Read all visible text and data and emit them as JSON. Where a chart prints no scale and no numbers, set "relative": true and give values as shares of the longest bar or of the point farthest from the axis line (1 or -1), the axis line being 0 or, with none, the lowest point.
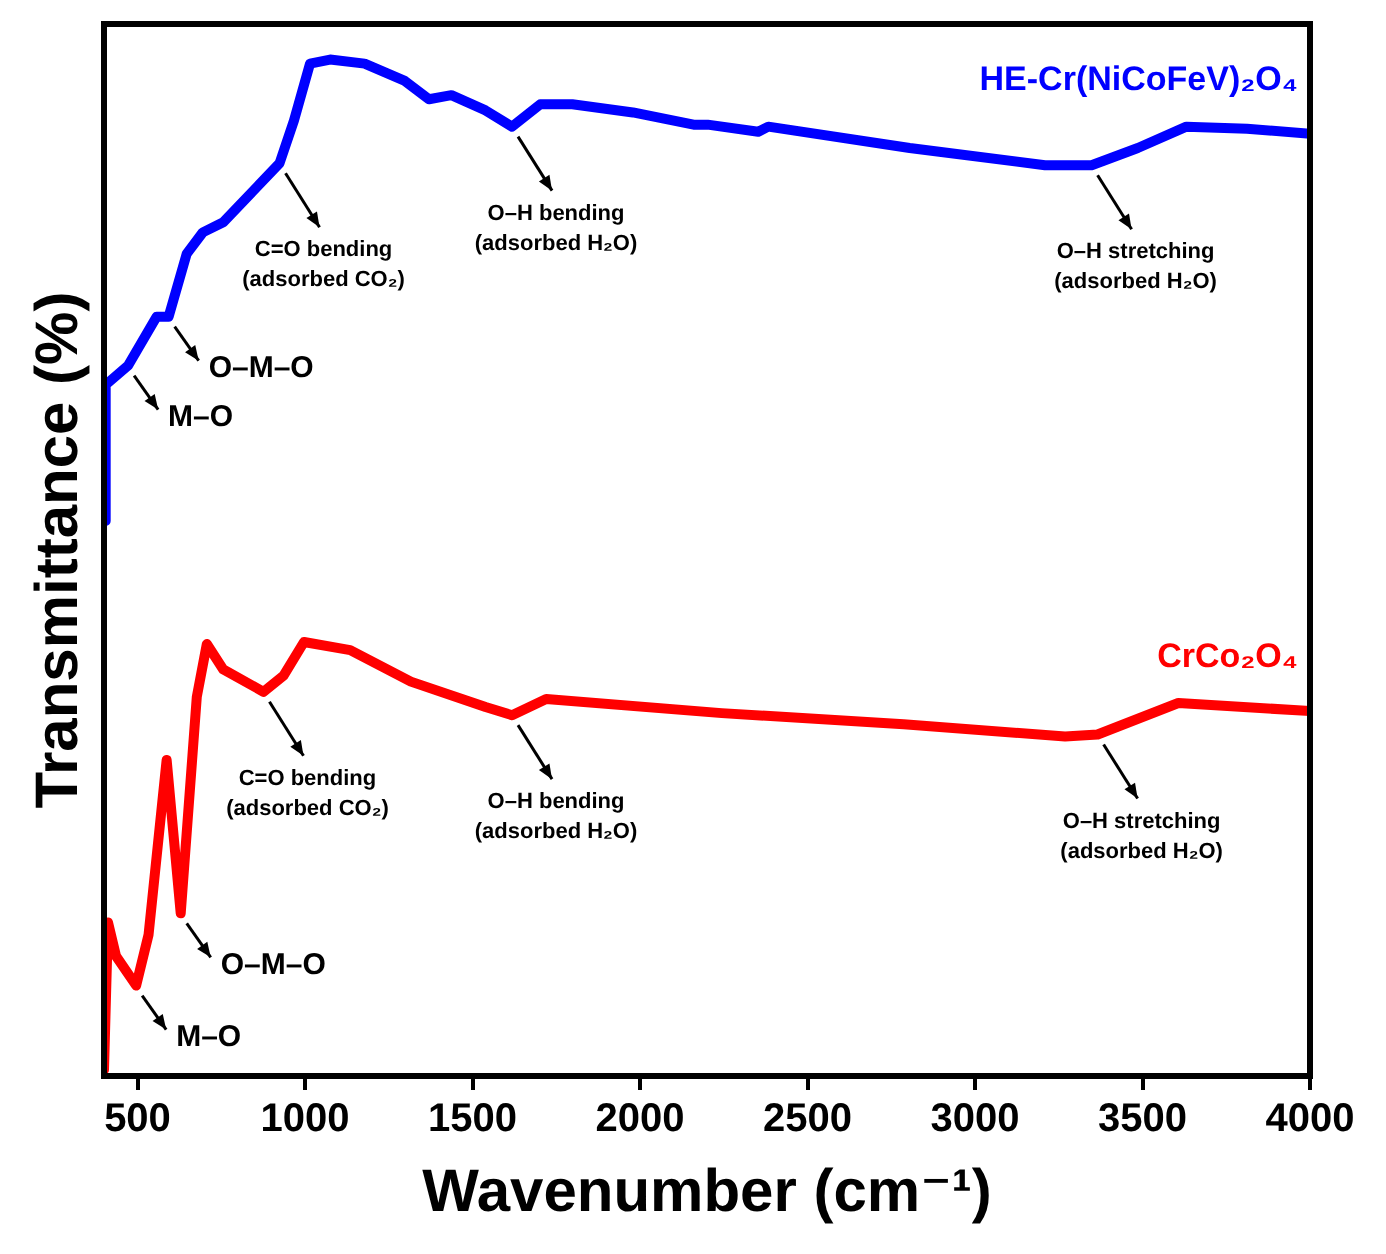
{
  "chart_data": {
    "type": "line",
    "relative": true,
    "xlabel": "Wavenumber (cm⁻¹)",
    "ylabel": "Transmittance (%)",
    "xlim": [
      400,
      4000
    ],
    "xticks": [
      500,
      1000,
      1500,
      2000,
      2500,
      3000,
      3500,
      4000
    ],
    "grid": false,
    "legend": false,
    "marker": "none",
    "line_style": "solid",
    "series": [
      {
        "name": "HE-Cr(NiCoFeV)₂O₄",
        "color": "#0000ff",
        "x": [
          400,
          405,
          472,
          557,
          593,
          647,
          695,
          756,
          924,
          967,
          1015,
          1075,
          1178,
          1298,
          1370,
          1437,
          1539,
          1618,
          1702,
          1798,
          1979,
          2160,
          2202,
          2353,
          2383,
          2805,
          3209,
          3348,
          3486,
          3631,
          3812,
          4000
        ],
        "values": [
          0.546,
          0.68,
          0.699,
          0.747,
          0.747,
          0.809,
          0.83,
          0.84,
          0.898,
          0.94,
          0.996,
          1.0,
          0.996,
          0.979,
          0.961,
          0.965,
          0.95,
          0.934,
          0.956,
          0.956,
          0.948,
          0.936,
          0.936,
          0.929,
          0.934,
          0.913,
          0.896,
          0.896,
          0.913,
          0.934,
          0.932,
          0.927
        ]
      },
      {
        "name": "CrCo₂O₄",
        "color": "#ff0000",
        "x": [
          400,
          412,
          436,
          496,
          533,
          587,
          629,
          677,
          707,
          756,
          876,
          936,
          997,
          1135,
          1316,
          1539,
          1618,
          1720,
          2244,
          2787,
          3269,
          3366,
          3607,
          4000
        ],
        "values": [
          0.006,
          0.151,
          0.118,
          0.089,
          0.139,
          0.311,
          0.16,
          0.373,
          0.425,
          0.4,
          0.378,
          0.394,
          0.427,
          0.419,
          0.388,
          0.363,
          0.355,
          0.371,
          0.357,
          0.346,
          0.334,
          0.336,
          0.367,
          0.359
        ]
      }
    ],
    "annotations": [
      {
        "text": "M–O",
        "x": 472,
        "y": 0.699
      },
      {
        "text": "O–M–O",
        "x": 593,
        "y": 0.747
      },
      {
        "text": "C=O bending\n(adsorbed CO₂)",
        "x": 924,
        "y": 0.898
      },
      {
        "text": "O–H bending\n(adsorbed H₂O)",
        "x": 1618,
        "y": 0.934
      },
      {
        "text": "O–H stretching\n(adsorbed H₂O)",
        "x": 3348,
        "y": 0.896
      },
      {
        "text": "M–O",
        "x": 496,
        "y": 0.089
      },
      {
        "text": "O–M–O",
        "x": 629,
        "y": 0.16
      },
      {
        "text": "C=O bending\n(adsorbed CO₂)",
        "x": 876,
        "y": 0.378
      },
      {
        "text": "O–H bending\n(adsorbed H₂O)",
        "x": 1618,
        "y": 0.355
      },
      {
        "text": "O–H stretching\n(adsorbed H₂O)",
        "x": 3366,
        "y": 0.336
      }
    ]
  }
}
